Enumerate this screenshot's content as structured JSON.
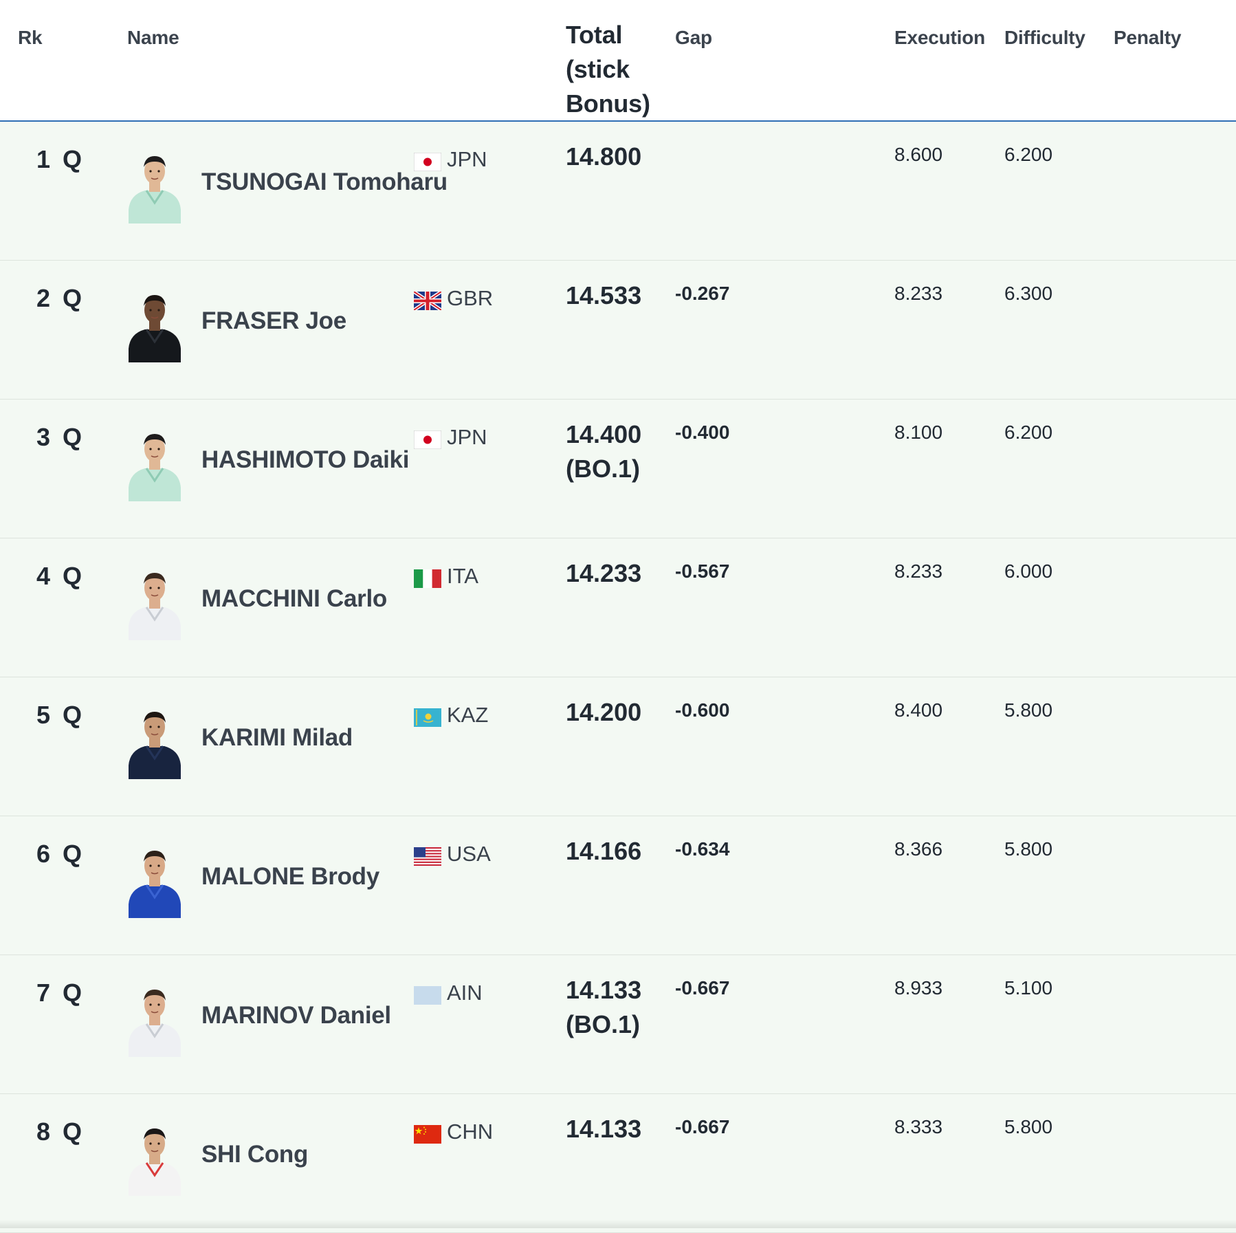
{
  "columns": {
    "rk": "Rk",
    "name": "Name",
    "total": "Total (stick Bonus)",
    "gap": "Gap",
    "execution": "Execution",
    "difficulty": "Difficulty",
    "penalty": "Penalty"
  },
  "athletes": [
    {
      "rank": "1",
      "qual": "Q",
      "name": "TSUNOGAI Tomoharu",
      "country": "JPN",
      "flag": "jpn",
      "kit": "mint",
      "total": "14.800",
      "bonus": "",
      "gap": "",
      "execution": "8.600",
      "difficulty": "6.200",
      "penalty": ""
    },
    {
      "rank": "2",
      "qual": "Q",
      "name": "FRASER Joe",
      "country": "GBR",
      "flag": "gbr",
      "kit": "black",
      "total": "14.533",
      "bonus": "",
      "gap": "-0.267",
      "execution": "8.233",
      "difficulty": "6.300",
      "penalty": ""
    },
    {
      "rank": "3",
      "qual": "Q",
      "name": "HASHIMOTO Daiki",
      "country": "JPN",
      "flag": "jpn",
      "kit": "mint",
      "total": "14.400",
      "bonus": "(BO.1)",
      "gap": "-0.400",
      "execution": "8.100",
      "difficulty": "6.200",
      "penalty": ""
    },
    {
      "rank": "4",
      "qual": "Q",
      "name": "MACCHINI Carlo",
      "country": "ITA",
      "flag": "ita",
      "kit": "white",
      "total": "14.233",
      "bonus": "",
      "gap": "-0.567",
      "execution": "8.233",
      "difficulty": "6.000",
      "penalty": ""
    },
    {
      "rank": "5",
      "qual": "Q",
      "name": "KARIMI Milad",
      "country": "KAZ",
      "flag": "kaz",
      "kit": "navy",
      "total": "14.200",
      "bonus": "",
      "gap": "-0.600",
      "execution": "8.400",
      "difficulty": "5.800",
      "penalty": ""
    },
    {
      "rank": "6",
      "qual": "Q",
      "name": "MALONE Brody",
      "country": "USA",
      "flag": "usa",
      "kit": "blue",
      "total": "14.166",
      "bonus": "",
      "gap": "-0.634",
      "execution": "8.366",
      "difficulty": "5.800",
      "penalty": ""
    },
    {
      "rank": "7",
      "qual": "Q",
      "name": "MARINOV Daniel",
      "country": "AIN",
      "flag": "ain",
      "kit": "white",
      "total": "14.133",
      "bonus": "(BO.1)",
      "gap": "-0.667",
      "execution": "8.933",
      "difficulty": "5.100",
      "penalty": ""
    },
    {
      "rank": "8",
      "qual": "Q",
      "name": "SHI Cong",
      "country": "CHN",
      "flag": "chn",
      "kit": "whitered",
      "total": "14.133",
      "bonus": "",
      "gap": "-0.667",
      "execution": "8.333",
      "difficulty": "5.800",
      "penalty": ""
    }
  ]
}
